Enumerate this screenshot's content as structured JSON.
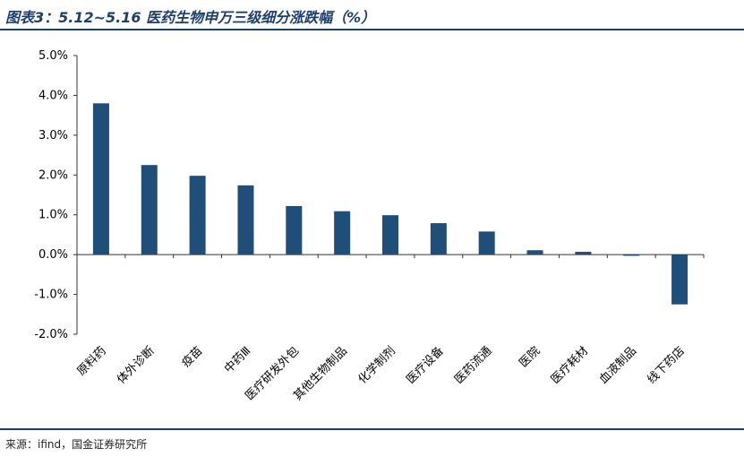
{
  "title": "图表3：5.12~5.16 医药生物申万三级细分涨跌幅（%）",
  "source": "来源：ifind，国金证券研究所",
  "colors": {
    "bar": "#1f4e79",
    "accent": "#1c3f6e",
    "axis": "#333333"
  },
  "chart_data": {
    "type": "bar",
    "categories": [
      "原料药",
      "体外诊断",
      "疫苗",
      "中药Ⅲ",
      "医疗研发外包",
      "其他生物制品",
      "化学制剂",
      "医疗设备",
      "医药流通",
      "医院",
      "医疗耗材",
      "血液制品",
      "线下药店"
    ],
    "values": [
      3.8,
      2.25,
      1.98,
      1.74,
      1.22,
      1.09,
      0.99,
      0.79,
      0.58,
      0.11,
      0.07,
      -0.03,
      -1.25
    ],
    "yticks": [
      "5.0%",
      "4.0%",
      "3.0%",
      "2.0%",
      "1.0%",
      "0.0%",
      "-1.0%",
      "-2.0%"
    ],
    "ylim": [
      -2.0,
      5.0
    ],
    "grid": false,
    "legend": false
  }
}
